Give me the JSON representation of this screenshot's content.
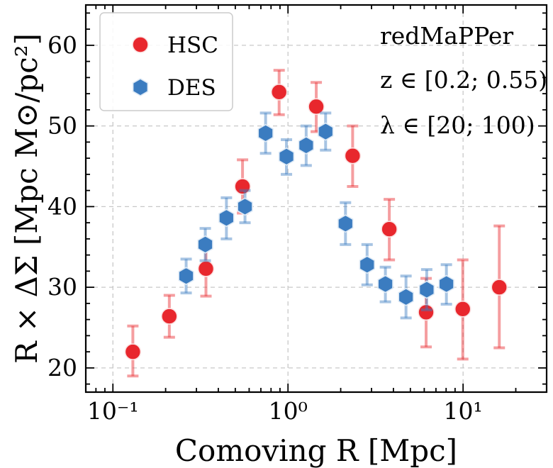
{
  "chart_data": {
    "type": "scatter",
    "xscale": "log",
    "xlim": [
      0.07,
      30
    ],
    "ylim": [
      17,
      65
    ],
    "grid": true,
    "xlabel": "Comoving R [Mpc]",
    "ylabel": "R × ΔΣ [Mpc M⊙/pc²]",
    "x_ticks": [
      0.1,
      1,
      10
    ],
    "x_tick_labels": [
      "10⁻¹",
      "10⁰",
      "10¹"
    ],
    "y_ticks": [
      20,
      30,
      40,
      50,
      60
    ],
    "y_tick_labels": [
      "20",
      "30",
      "40",
      "50",
      "60"
    ],
    "legend_position": "top-left",
    "annotations": [
      "redMaPPer",
      "z ∈ [0.2; 0.55)",
      "λ ∈ [20; 100)"
    ],
    "series": [
      {
        "name": "HSC",
        "marker": "circle",
        "color": "#e8272d",
        "points": [
          {
            "x": 0.13,
            "y": 22.0,
            "lo": 19.0,
            "hi": 25.2
          },
          {
            "x": 0.21,
            "y": 26.4,
            "lo": 23.8,
            "hi": 29.0
          },
          {
            "x": 0.34,
            "y": 32.3,
            "lo": 28.9,
            "hi": 35.7
          },
          {
            "x": 0.55,
            "y": 42.5,
            "lo": 39.2,
            "hi": 45.8
          },
          {
            "x": 0.89,
            "y": 54.2,
            "lo": 51.4,
            "hi": 56.9
          },
          {
            "x": 1.45,
            "y": 52.4,
            "lo": 49.3,
            "hi": 55.4
          },
          {
            "x": 2.34,
            "y": 46.3,
            "lo": 42.5,
            "hi": 50.0
          },
          {
            "x": 3.79,
            "y": 37.2,
            "lo": 33.4,
            "hi": 40.9
          },
          {
            "x": 6.15,
            "y": 26.9,
            "lo": 22.6,
            "hi": 31.1
          },
          {
            "x": 9.96,
            "y": 27.3,
            "lo": 21.1,
            "hi": 33.4
          },
          {
            "x": 16.1,
            "y": 30.0,
            "lo": 22.5,
            "hi": 37.6
          }
        ]
      },
      {
        "name": "DES",
        "marker": "hexagon",
        "color": "#3b7cc0",
        "points": [
          {
            "x": 0.262,
            "y": 31.4,
            "lo": 29.3,
            "hi": 33.5
          },
          {
            "x": 0.337,
            "y": 35.3,
            "lo": 33.3,
            "hi": 37.3
          },
          {
            "x": 0.445,
            "y": 38.6,
            "lo": 36.0,
            "hi": 41.1
          },
          {
            "x": 0.568,
            "y": 40.0,
            "lo": 38.0,
            "hi": 42.0
          },
          {
            "x": 0.745,
            "y": 49.1,
            "lo": 46.6,
            "hi": 51.6
          },
          {
            "x": 0.98,
            "y": 46.2,
            "lo": 44.0,
            "hi": 48.3
          },
          {
            "x": 1.27,
            "y": 47.6,
            "lo": 45.1,
            "hi": 50.0
          },
          {
            "x": 1.64,
            "y": 49.3,
            "lo": 47.0,
            "hi": 51.6
          },
          {
            "x": 2.13,
            "y": 37.9,
            "lo": 35.3,
            "hi": 40.5
          },
          {
            "x": 2.83,
            "y": 32.8,
            "lo": 30.3,
            "hi": 35.3
          },
          {
            "x": 3.6,
            "y": 30.4,
            "lo": 28.2,
            "hi": 32.5
          },
          {
            "x": 4.72,
            "y": 28.8,
            "lo": 26.2,
            "hi": 31.4
          },
          {
            "x": 6.2,
            "y": 29.7,
            "lo": 27.2,
            "hi": 32.2
          },
          {
            "x": 8.03,
            "y": 30.4,
            "lo": 27.9,
            "hi": 32.8
          }
        ]
      }
    ]
  }
}
